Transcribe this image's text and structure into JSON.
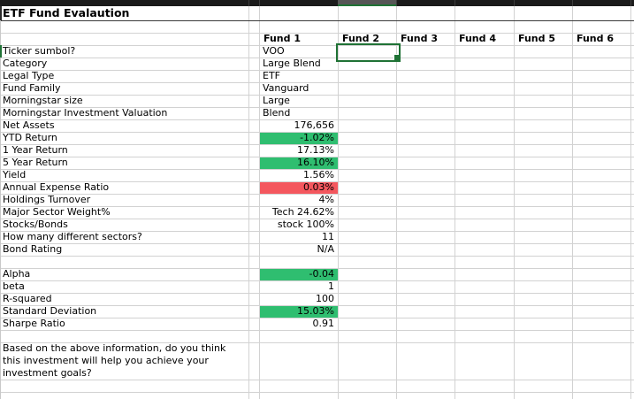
{
  "sheet": {
    "title": "ETF Fund Evalaution",
    "fund_headers": [
      "Fund 1",
      "Fund 2",
      "Fund 3",
      "Fund 4",
      "Fund 5",
      "Fund 6"
    ],
    "rows": [
      {
        "label": "Ticker sumbol?",
        "fund1": "VOO",
        "align": "left"
      },
      {
        "label": "Category",
        "fund1": "Large Blend",
        "align": "left"
      },
      {
        "label": "Legal Type",
        "fund1": "ETF",
        "align": "left"
      },
      {
        "label": "Fund Family",
        "fund1": "Vanguard",
        "align": "left"
      },
      {
        "label": "Morningstar size",
        "fund1": "Large",
        "align": "left"
      },
      {
        "label": "Morningstar Investment Valuation",
        "fund1": "Blend",
        "align": "left"
      },
      {
        "label": "Net Assets",
        "fund1": "176,656",
        "align": "right"
      },
      {
        "label": "YTD Return",
        "fund1": "-1.02%",
        "align": "right",
        "fill": "positive"
      },
      {
        "label": "1 Year Return",
        "fund1": "17.13%",
        "align": "right"
      },
      {
        "label": "5 Year Return",
        "fund1": "16.10%",
        "align": "right",
        "fill": "positive"
      },
      {
        "label": "Yield",
        "fund1": "1.56%",
        "align": "right"
      },
      {
        "label": "Annual Expense Ratio",
        "fund1": "0.03%",
        "align": "right",
        "fill": "negative"
      },
      {
        "label": "Holdings Turnover",
        "fund1": "4%",
        "align": "right"
      },
      {
        "label": "Major Sector Weight%",
        "fund1": "Tech 24.62%",
        "align": "right"
      },
      {
        "label": "Stocks/Bonds",
        "fund1": "stock 100%",
        "align": "right"
      },
      {
        "label": "How many different sectors?",
        "fund1": "11",
        "align": "right"
      },
      {
        "label": "Bond Rating",
        "fund1": "N/A",
        "align": "right"
      },
      {
        "label": "",
        "fund1": "",
        "blank": true
      },
      {
        "label": "Alpha",
        "fund1": "-0.04",
        "align": "right",
        "fill": "positive"
      },
      {
        "label": "beta",
        "fund1": "1",
        "align": "right"
      },
      {
        "label": "R-squared",
        "fund1": "100",
        "align": "right"
      },
      {
        "label": "Standard Deviation",
        "fund1": "15.03%",
        "align": "right",
        "fill": "positive"
      },
      {
        "label": "Sharpe Ratio",
        "fund1": "0.91",
        "align": "right"
      }
    ],
    "question_lines": [
      "Based on the above information, do you think",
      "this investment will help you achieve your",
      "investment goals?"
    ],
    "selection": {
      "column": "Fund 2",
      "row": "Ticker sumbol?"
    },
    "colors": {
      "positive_fill": "#2fbe70",
      "negative_fill": "#f4575e",
      "selection_green": "#1f7235",
      "header_strip_bg": "#1b1b1b",
      "header_strip_selected": "#565656",
      "header_strip_separator": "#3c3c3c",
      "gridline": "#d2d2d2",
      "frozen_divider": "#3a3a3a"
    }
  }
}
